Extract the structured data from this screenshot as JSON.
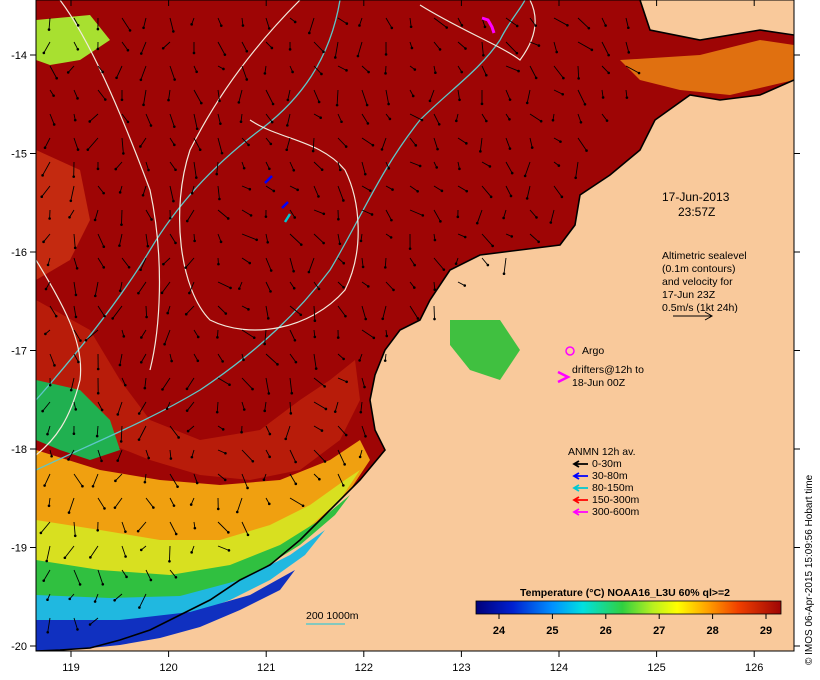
{
  "map": {
    "x_ticks": [
      "119",
      "120",
      "121",
      "122",
      "123",
      "124",
      "125",
      "126"
    ],
    "y_ticks": [
      "-14",
      "-15",
      "-16",
      "-17",
      "-18",
      "-19",
      "-20"
    ],
    "colors": {
      "warm": "#9e0505",
      "warm2": "#b81c0a",
      "land": "#f9c99b",
      "coast": "#000000",
      "contour": "#5ec7c9",
      "sealevel": "#f2eadd"
    }
  },
  "annotations": {
    "date": "17-Jun-2013",
    "time": "23:57Z",
    "altimetry": [
      "Altimetric sealevel",
      "(0.1m contours)",
      "and velocity for",
      "17-Jun 23Z",
      "0.5m/s (1kt 24h)"
    ],
    "argo": "Argo",
    "drifters": [
      "drifters@12h to",
      "18-Jun 00Z"
    ],
    "depth_scale": "200  1000m"
  },
  "mooring_legend": {
    "title": "ANMN 12h av.",
    "items": [
      {
        "label": "0-30m",
        "color": "#000000"
      },
      {
        "label": "30-80m",
        "color": "#0000ff"
      },
      {
        "label": "80-150m",
        "color": "#00c8d2"
      },
      {
        "label": "150-300m",
        "color": "#ff0000"
      },
      {
        "label": "300-600m",
        "color": "#ff00ff"
      }
    ]
  },
  "colorbar": {
    "title": "Temperature (°C) NOAA16_L3U 60% ql>=2",
    "ticks": [
      "24",
      "25",
      "26",
      "27",
      "28",
      "29"
    ]
  },
  "side_text": "© IMOS 06-Apr-2015 15:09:56 Hobart time"
}
